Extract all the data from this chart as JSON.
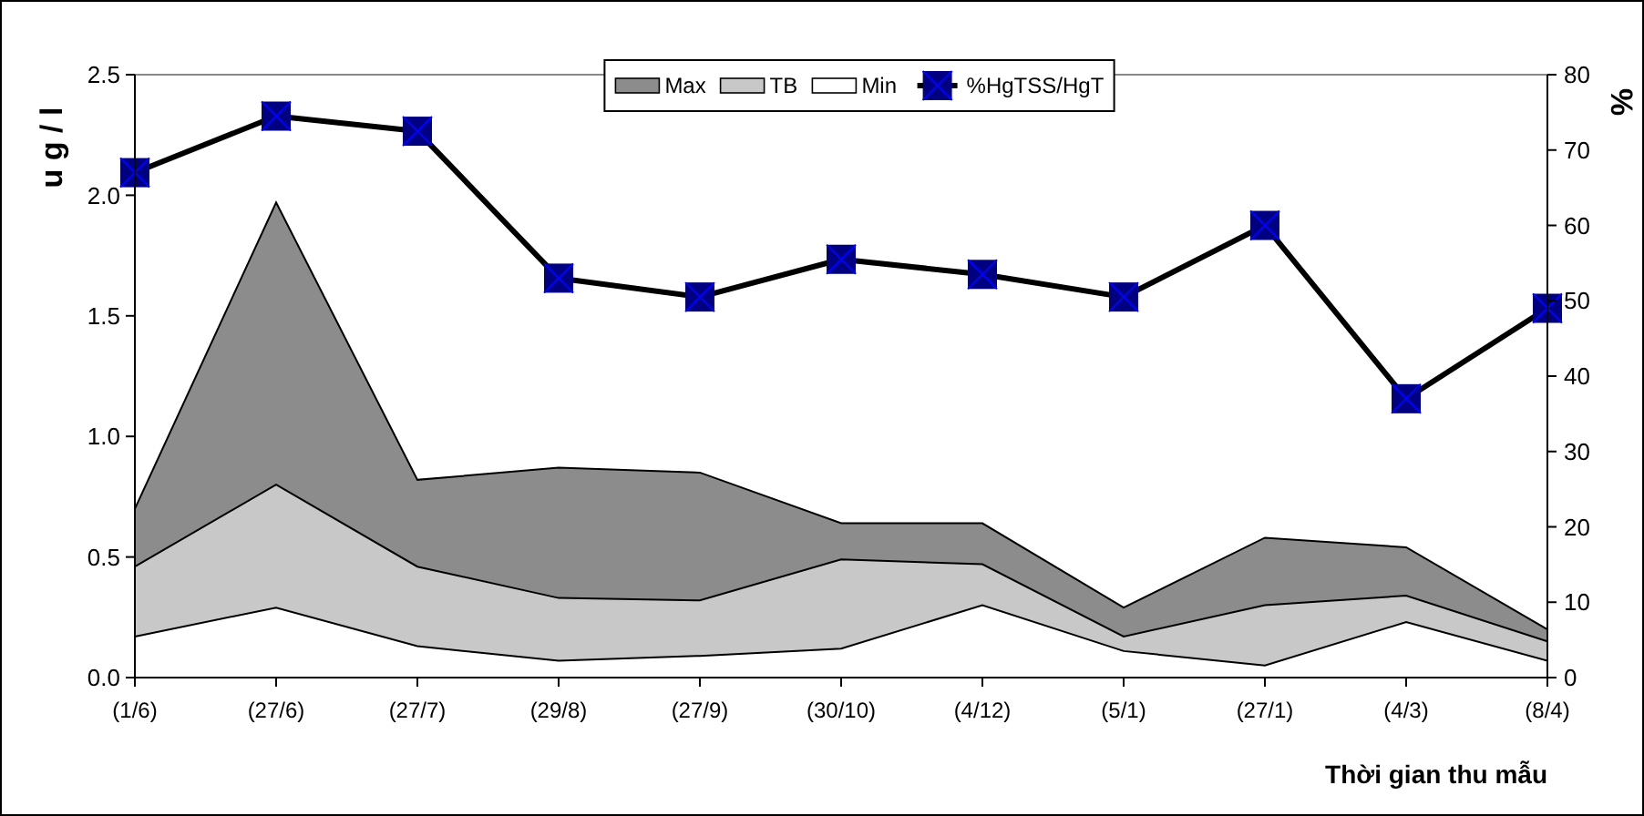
{
  "chart_data": {
    "type": "area",
    "xlabel": "Thời gian thu mẫu",
    "ylabel": "u g / l",
    "y2label": "%",
    "categories": [
      "(1/6)",
      "(27/6)",
      "(27/7)",
      "(29/8)",
      "(27/9)",
      "(30/10)",
      "(4/12)",
      "(5/1)",
      "(27/1)",
      "(4/3)",
      "(8/4)"
    ],
    "series": [
      {
        "name": "Max",
        "color": "#8c8c8c",
        "values": [
          0.7,
          1.97,
          0.82,
          0.87,
          0.85,
          0.64,
          0.64,
          0.29,
          0.58,
          0.54,
          0.2
        ]
      },
      {
        "name": "TB",
        "color": "#c8c8c8",
        "values": [
          0.46,
          0.8,
          0.46,
          0.33,
          0.32,
          0.49,
          0.47,
          0.17,
          0.3,
          0.34,
          0.15
        ]
      },
      {
        "name": "Min",
        "color": "#ffffff",
        "values": [
          0.17,
          0.29,
          0.13,
          0.07,
          0.09,
          0.12,
          0.3,
          0.11,
          0.05,
          0.23,
          0.07
        ]
      },
      {
        "name": "%HgTSS/HgT",
        "type": "line",
        "axis": "y2",
        "color": "#000080",
        "marker": "square",
        "values": [
          67,
          74.5,
          72.5,
          53,
          50.5,
          55.5,
          53.5,
          50.5,
          60,
          37,
          49
        ]
      }
    ],
    "ylim": [
      0,
      2.5
    ],
    "yticks": [
      {
        "value": 0,
        "label": "0.0"
      },
      {
        "value": 0.5,
        "label": "0.5"
      },
      {
        "value": 1,
        "label": "1.0"
      },
      {
        "value": 1.5,
        "label": "1.5"
      },
      {
        "value": 2,
        "label": "2.0"
      },
      {
        "value": 2.5,
        "label": "2.5"
      }
    ],
    "y2lim": [
      0,
      80
    ],
    "y2ticks": [
      0,
      10,
      20,
      30,
      40,
      50,
      60,
      70,
      80
    ],
    "grid": false,
    "legend": "top"
  }
}
